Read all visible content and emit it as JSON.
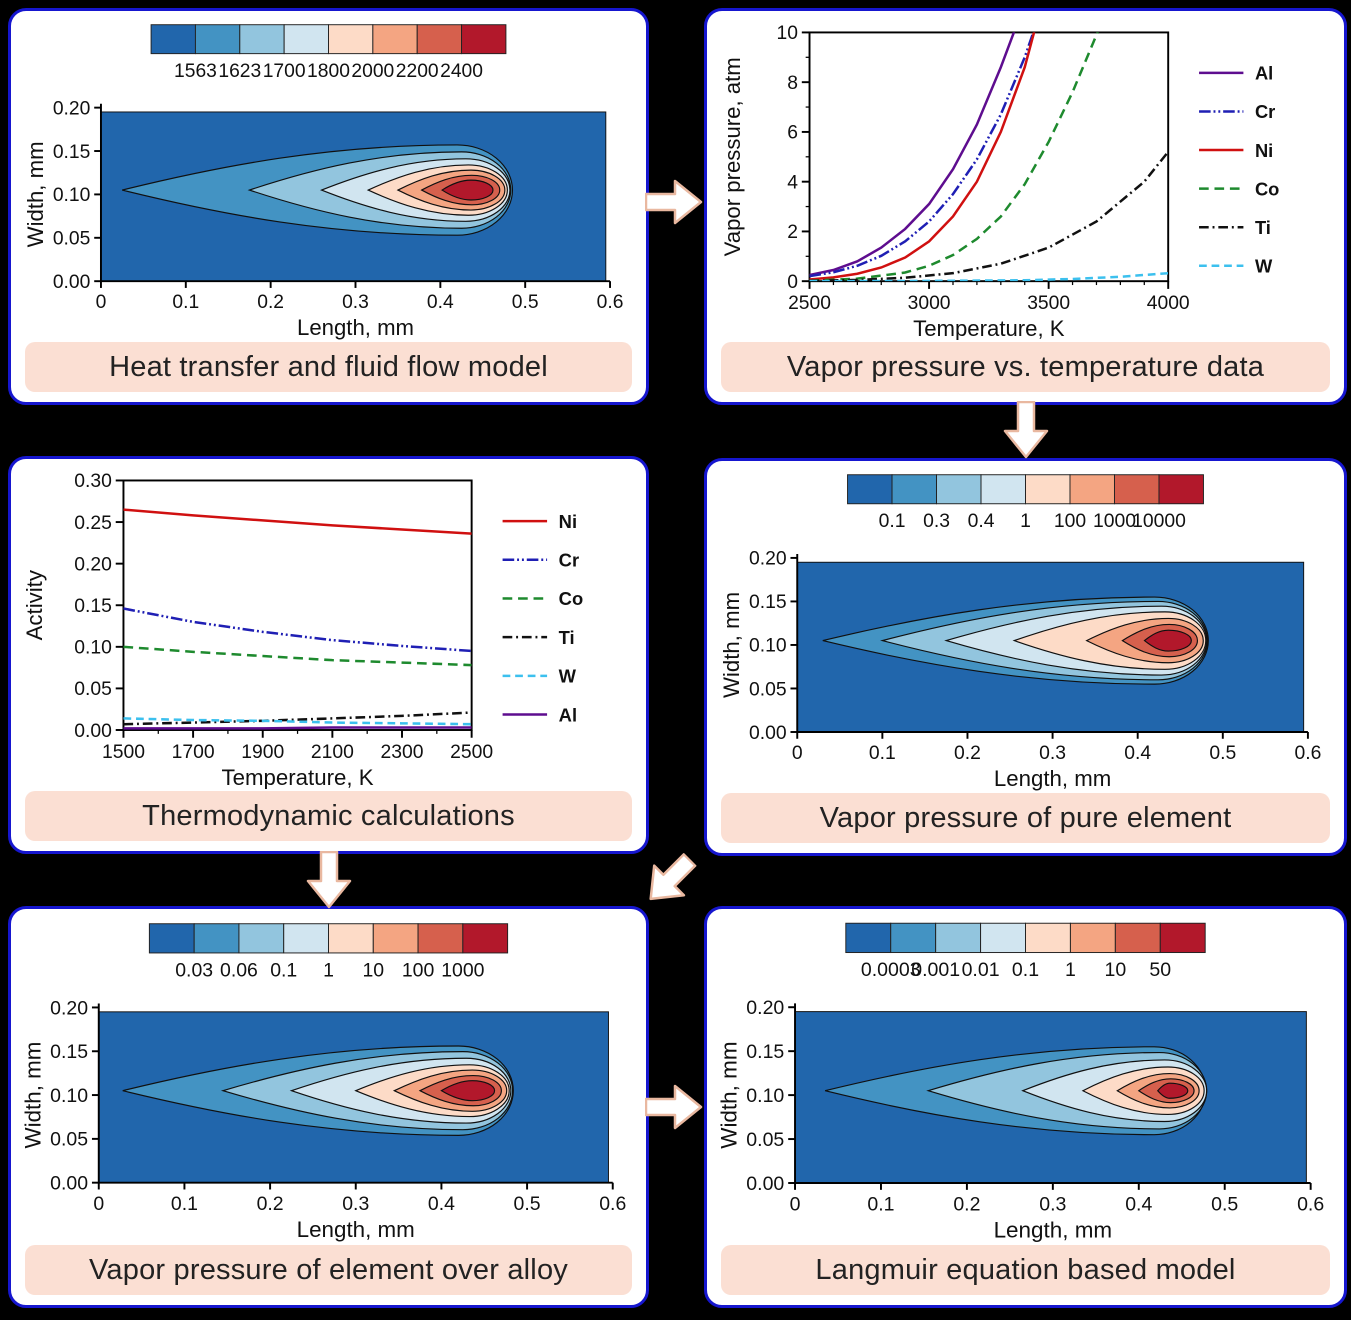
{
  "colors": {
    "page_bg": "#000000",
    "panel_bg": "#ffffff",
    "panel_border": "#1616cf",
    "label_bg": "#fbdfd3",
    "label_text": "#222222",
    "arrow_fill": "#ffffff",
    "arrow_stroke": "#e9b8a0",
    "palette": [
      "#2166ac",
      "#4393c3",
      "#92c5de",
      "#d1e5f0",
      "#fddbc7",
      "#f4a582",
      "#d6604d",
      "#b2182b"
    ]
  },
  "panels": [
    {
      "label": "Heat transfer and fluid flow model"
    },
    {
      "label": "Vapor pressure vs. temperature data"
    },
    {
      "label": "Thermodynamic calculations"
    },
    {
      "label": "Vapor pressure of pure element"
    },
    {
      "label": "Vapor pressure of element over alloy"
    },
    {
      "label": "Langmuir equation based model"
    }
  ],
  "chart_data": [
    {
      "id": "heat-flow-model",
      "type": "heatmap",
      "subtype": "contour",
      "title": "Heat transfer and fluid flow model",
      "xlabel": "Length, mm",
      "ylabel": "Width, mm",
      "xlim": [
        0,
        0.6
      ],
      "ylim": [
        0,
        0.2
      ],
      "x_ticks": {
        "values": [
          0,
          0.1,
          0.2,
          0.3,
          0.4,
          0.5,
          0.6
        ],
        "labels": [
          "0",
          "0.1",
          "0.2",
          "0.3",
          "0.4",
          "0.5",
          "0.6"
        ]
      },
      "y_ticks": {
        "values": [
          0,
          0.05,
          0.1,
          0.15,
          0.2
        ],
        "labels": [
          "0.00",
          "0.05",
          "0.10",
          "0.15",
          "0.20"
        ]
      },
      "colorbar_labels": [
        "1563",
        "1623",
        "1700",
        "1800",
        "2000",
        "2200",
        "2400"
      ],
      "field_extent": {
        "x": 0.595,
        "y": 0.195
      },
      "y_center": 0.105,
      "contours": [
        {
          "xL": 0.025,
          "xC": 0.42,
          "w2": 0.065,
          "h": 0.052
        },
        {
          "xL": 0.175,
          "xC": 0.425,
          "w2": 0.058,
          "h": 0.044
        },
        {
          "xL": 0.26,
          "xC": 0.43,
          "w2": 0.052,
          "h": 0.036
        },
        {
          "xL": 0.315,
          "xC": 0.433,
          "w2": 0.046,
          "h": 0.029
        },
        {
          "xL": 0.35,
          "xC": 0.436,
          "w2": 0.04,
          "h": 0.023
        },
        {
          "xL": 0.378,
          "xC": 0.437,
          "w2": 0.033,
          "h": 0.017
        },
        {
          "xL": 0.402,
          "xC": 0.436,
          "w2": 0.026,
          "h": 0.0115
        }
      ]
    },
    {
      "id": "vapor-pressure-temperature",
      "type": "line",
      "title": "Vapor pressure vs. temperature data",
      "xlabel": "Temperature, K",
      "ylabel": "Vapor pressure, atm",
      "xlim": [
        2500,
        4000
      ],
      "ylim": [
        0,
        10
      ],
      "x_ticks": {
        "values": [
          2500,
          3000,
          3500,
          4000
        ],
        "labels": [
          "2500",
          "3000",
          "3500",
          "4000"
        ]
      },
      "y_ticks": {
        "values": [
          0,
          2,
          4,
          6,
          8,
          10
        ],
        "labels": [
          "0",
          "2",
          "4",
          "6",
          "8",
          "10"
        ]
      },
      "x_minor_step": 100,
      "y_minor_step": 1,
      "legend_position": "right",
      "grid": false,
      "series": [
        {
          "name": "Al",
          "color": "#5e0d8f",
          "dash": "",
          "points": [
            [
              2500,
              0.25
            ],
            [
              2600,
              0.45
            ],
            [
              2700,
              0.8
            ],
            [
              2800,
              1.35
            ],
            [
              2900,
              2.1
            ],
            [
              3000,
              3.1
            ],
            [
              3100,
              4.5
            ],
            [
              3200,
              6.3
            ],
            [
              3300,
              8.6
            ],
            [
              3370,
              10.4
            ]
          ]
        },
        {
          "name": "Cr",
          "color": "#1f1fb4",
          "dash": "12 3 2 3 2 3",
          "points": [
            [
              2500,
              0.2
            ],
            [
              2600,
              0.36
            ],
            [
              2700,
              0.62
            ],
            [
              2800,
              1.02
            ],
            [
              2900,
              1.6
            ],
            [
              3000,
              2.4
            ],
            [
              3100,
              3.5
            ],
            [
              3200,
              4.9
            ],
            [
              3300,
              6.7
            ],
            [
              3400,
              9.0
            ],
            [
              3450,
              10.4
            ]
          ]
        },
        {
          "name": "Ni",
          "color": "#d01010",
          "dash": "",
          "points": [
            [
              2500,
              0.07
            ],
            [
              2600,
              0.15
            ],
            [
              2700,
              0.3
            ],
            [
              2800,
              0.55
            ],
            [
              2900,
              0.95
            ],
            [
              3000,
              1.6
            ],
            [
              3100,
              2.6
            ],
            [
              3200,
              4.0
            ],
            [
              3300,
              6.0
            ],
            [
              3400,
              8.6
            ],
            [
              3450,
              10.4
            ]
          ]
        },
        {
          "name": "Co",
          "color": "#1e8a2e",
          "dash": "10 6",
          "points": [
            [
              2500,
              0.02
            ],
            [
              2700,
              0.1
            ],
            [
              2900,
              0.35
            ],
            [
              3000,
              0.62
            ],
            [
              3100,
              1.05
            ],
            [
              3200,
              1.7
            ],
            [
              3300,
              2.6
            ],
            [
              3400,
              3.9
            ],
            [
              3500,
              5.6
            ],
            [
              3600,
              7.6
            ],
            [
              3700,
              9.9
            ],
            [
              3720,
              10.4
            ]
          ]
        },
        {
          "name": "Ti",
          "color": "#111111",
          "dash": "10 4 2 4",
          "points": [
            [
              2500,
              0.01
            ],
            [
              2700,
              0.05
            ],
            [
              2900,
              0.14
            ],
            [
              3100,
              0.32
            ],
            [
              3300,
              0.7
            ],
            [
              3500,
              1.35
            ],
            [
              3700,
              2.4
            ],
            [
              3900,
              4.0
            ],
            [
              4000,
              5.2
            ]
          ]
        },
        {
          "name": "W",
          "color": "#3cc0ee",
          "dash": "8 5",
          "points": [
            [
              2500,
              0.0
            ],
            [
              3000,
              0.01
            ],
            [
              3400,
              0.04
            ],
            [
              3600,
              0.09
            ],
            [
              3800,
              0.18
            ],
            [
              4000,
              0.32
            ]
          ]
        }
      ]
    },
    {
      "id": "thermodynamic-activity",
      "type": "line",
      "title": "Thermodynamic calculations",
      "xlabel": "Temperature, K",
      "ylabel": "Activity",
      "xlim": [
        1500,
        2500
      ],
      "ylim": [
        0,
        0.3
      ],
      "x_ticks": {
        "values": [
          1500,
          1700,
          1900,
          2100,
          2300,
          2500
        ],
        "labels": [
          "1500",
          "1700",
          "1900",
          "2100",
          "2300",
          "2500"
        ]
      },
      "y_ticks": {
        "values": [
          0,
          0.05,
          0.1,
          0.15,
          0.2,
          0.25,
          0.3
        ],
        "labels": [
          "0.00",
          "0.05",
          "0.10",
          "0.15",
          "0.20",
          "0.25",
          "0.30"
        ]
      },
      "x_minor_step": 100,
      "legend_position": "right",
      "grid": false,
      "series": [
        {
          "name": "Ni",
          "color": "#d01010",
          "dash": "",
          "points": [
            [
              1500,
              0.265
            ],
            [
              1700,
              0.258
            ],
            [
              1900,
              0.252
            ],
            [
              2100,
              0.246
            ],
            [
              2300,
              0.241
            ],
            [
              2500,
              0.236
            ]
          ]
        },
        {
          "name": "Cr",
          "color": "#1f1fb4",
          "dash": "12 3 2 3 2 3",
          "points": [
            [
              1500,
              0.146
            ],
            [
              1700,
              0.13
            ],
            [
              1900,
              0.118
            ],
            [
              2100,
              0.108
            ],
            [
              2300,
              0.101
            ],
            [
              2500,
              0.095
            ]
          ]
        },
        {
          "name": "Co",
          "color": "#1e8a2e",
          "dash": "10 6",
          "points": [
            [
              1500,
              0.1
            ],
            [
              1700,
              0.094
            ],
            [
              1900,
              0.089
            ],
            [
              2100,
              0.084
            ],
            [
              2300,
              0.081
            ],
            [
              2500,
              0.078
            ]
          ]
        },
        {
          "name": "Ti",
          "color": "#111111",
          "dash": "10 4 2 4",
          "points": [
            [
              1500,
              0.007
            ],
            [
              1700,
              0.009
            ],
            [
              1900,
              0.011
            ],
            [
              2100,
              0.014
            ],
            [
              2300,
              0.017
            ],
            [
              2500,
              0.021
            ]
          ]
        },
        {
          "name": "W",
          "color": "#3cc0ee",
          "dash": "8 5",
          "points": [
            [
              1500,
              0.014
            ],
            [
              1700,
              0.012
            ],
            [
              1900,
              0.011
            ],
            [
              2100,
              0.009
            ],
            [
              2300,
              0.008
            ],
            [
              2500,
              0.007
            ]
          ]
        },
        {
          "name": "Al",
          "color": "#5e0d8f",
          "dash": "",
          "points": [
            [
              1500,
              0.002
            ],
            [
              1700,
              0.002
            ],
            [
              1900,
              0.002
            ],
            [
              2100,
              0.003
            ],
            [
              2300,
              0.003
            ],
            [
              2500,
              0.003
            ]
          ]
        }
      ]
    },
    {
      "id": "vapor-pressure-pure-element",
      "type": "heatmap",
      "subtype": "contour",
      "title": "Vapor pressure of pure element",
      "xlabel": "Length, mm",
      "ylabel": "Width, mm",
      "xlim": [
        0,
        0.6
      ],
      "ylim": [
        0,
        0.2
      ],
      "x_ticks": {
        "values": [
          0,
          0.1,
          0.2,
          0.3,
          0.4,
          0.5,
          0.6
        ],
        "labels": [
          "0",
          "0.1",
          "0.2",
          "0.3",
          "0.4",
          "0.5",
          "0.6"
        ]
      },
      "y_ticks": {
        "values": [
          0,
          0.05,
          0.1,
          0.15,
          0.2
        ],
        "labels": [
          "0.00",
          "0.05",
          "0.10",
          "0.15",
          "0.20"
        ]
      },
      "colorbar_labels": [
        "0.1",
        "0.3",
        "0.4",
        "1",
        "100",
        "1000",
        "10000"
      ],
      "field_extent": {
        "x": 0.595,
        "y": 0.195
      },
      "y_center": 0.105,
      "contours": [
        {
          "xL": 0.03,
          "xC": 0.42,
          "w2": 0.063,
          "h": 0.05
        },
        {
          "xL": 0.1,
          "xC": 0.424,
          "w2": 0.058,
          "h": 0.045
        },
        {
          "xL": 0.175,
          "xC": 0.428,
          "w2": 0.053,
          "h": 0.0395
        },
        {
          "xL": 0.255,
          "xC": 0.432,
          "w2": 0.048,
          "h": 0.033
        },
        {
          "xL": 0.34,
          "xC": 0.436,
          "w2": 0.041,
          "h": 0.0255
        },
        {
          "xL": 0.382,
          "xC": 0.437,
          "w2": 0.033,
          "h": 0.0185
        },
        {
          "xL": 0.408,
          "xC": 0.436,
          "w2": 0.027,
          "h": 0.012
        }
      ]
    },
    {
      "id": "vapor-pressure-over-alloy",
      "type": "heatmap",
      "subtype": "contour",
      "title": "Vapor pressure of element over alloy",
      "xlabel": "Length, mm",
      "ylabel": "Width, mm",
      "xlim": [
        0,
        0.6
      ],
      "ylim": [
        0,
        0.2
      ],
      "x_ticks": {
        "values": [
          0,
          0.1,
          0.2,
          0.3,
          0.4,
          0.5,
          0.6
        ],
        "labels": [
          "0",
          "0.1",
          "0.2",
          "0.3",
          "0.4",
          "0.5",
          "0.6"
        ]
      },
      "y_ticks": {
        "values": [
          0,
          0.05,
          0.1,
          0.15,
          0.2
        ],
        "labels": [
          "0.00",
          "0.05",
          "0.10",
          "0.15",
          "0.20"
        ]
      },
      "colorbar_labels": [
        "0.03",
        "0.06",
        "0.1",
        "1",
        "10",
        "100",
        "1000"
      ],
      "field_extent": {
        "x": 0.595,
        "y": 0.195
      },
      "y_center": 0.105,
      "contours": [
        {
          "xL": 0.028,
          "xC": 0.42,
          "w2": 0.064,
          "h": 0.051
        },
        {
          "xL": 0.145,
          "xC": 0.425,
          "w2": 0.058,
          "h": 0.0445
        },
        {
          "xL": 0.225,
          "xC": 0.429,
          "w2": 0.052,
          "h": 0.037
        },
        {
          "xL": 0.3,
          "xC": 0.433,
          "w2": 0.046,
          "h": 0.0295
        },
        {
          "xL": 0.345,
          "xC": 0.436,
          "w2": 0.04,
          "h": 0.0235
        },
        {
          "xL": 0.375,
          "xC": 0.437,
          "w2": 0.033,
          "h": 0.0172
        },
        {
          "xL": 0.4,
          "xC": 0.436,
          "w2": 0.026,
          "h": 0.0115
        }
      ]
    },
    {
      "id": "langmuir-model",
      "type": "heatmap",
      "subtype": "contour",
      "title": "Langmuir equation based model",
      "xlabel": "Length, mm",
      "ylabel": "Width, mm",
      "xlim": [
        0,
        0.6
      ],
      "ylim": [
        0,
        0.2
      ],
      "x_ticks": {
        "values": [
          0,
          0.1,
          0.2,
          0.3,
          0.4,
          0.5,
          0.6
        ],
        "labels": [
          "0",
          "0.1",
          "0.2",
          "0.3",
          "0.4",
          "0.5",
          "0.6"
        ]
      },
      "y_ticks": {
        "values": [
          0,
          0.05,
          0.1,
          0.15,
          0.2
        ],
        "labels": [
          "0.00",
          "0.05",
          "0.10",
          "0.15",
          "0.20"
        ]
      },
      "colorbar_labels": [
        "0.0003",
        "0.001",
        "0.01",
        "0.1",
        "1",
        "10",
        "50"
      ],
      "field_extent": {
        "x": 0.595,
        "y": 0.195
      },
      "y_center": 0.105,
      "contours": [
        {
          "xL": 0.035,
          "xC": 0.418,
          "w2": 0.06,
          "h": 0.05
        },
        {
          "xL": 0.155,
          "xC": 0.424,
          "w2": 0.055,
          "h": 0.0435
        },
        {
          "xL": 0.265,
          "xC": 0.43,
          "w2": 0.049,
          "h": 0.035
        },
        {
          "xL": 0.335,
          "xC": 0.434,
          "w2": 0.042,
          "h": 0.027
        },
        {
          "xL": 0.375,
          "xC": 0.436,
          "w2": 0.034,
          "h": 0.0195
        },
        {
          "xL": 0.4,
          "xC": 0.437,
          "w2": 0.027,
          "h": 0.0135
        },
        {
          "xL": 0.422,
          "xC": 0.436,
          "w2": 0.021,
          "h": 0.0085
        }
      ]
    }
  ]
}
